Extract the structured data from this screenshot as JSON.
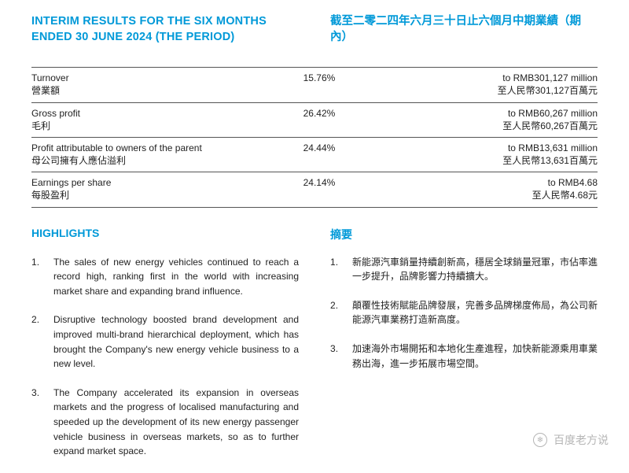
{
  "title": {
    "en": "INTERIM RESULTS FOR THE SIX MONTHS ENDED 30 JUNE 2024 (THE PERIOD)",
    "cn": "截至二零二四年六月三十日止六個月中期業績（期內）"
  },
  "table": {
    "rows": [
      {
        "label_en": "Turnover",
        "label_cn": "營業額",
        "pct": "15.76%",
        "val_en": "to RMB301,127 million",
        "val_cn": "至人民幣301,127百萬元"
      },
      {
        "label_en": "Gross profit",
        "label_cn": "毛利",
        "pct": "26.42%",
        "val_en": "to RMB60,267 million",
        "val_cn": "至人民幣60,267百萬元"
      },
      {
        "label_en": "Profit attributable to owners of the parent",
        "label_cn": "母公司擁有人應佔溢利",
        "pct": "24.44%",
        "val_en": "to RMB13,631 million",
        "val_cn": "至人民幣13,631百萬元"
      },
      {
        "label_en": "Earnings per share",
        "label_cn": "每股盈利",
        "pct": "24.14%",
        "val_en": "to RMB4.68",
        "val_cn": "至人民幣4.68元"
      }
    ]
  },
  "highlights": {
    "head_en": "HIGHLIGHTS",
    "head_cn": "摘要",
    "items_en": [
      "The sales of new energy vehicles continued to reach a record high, ranking first in the world with increasing market share and expanding brand influence.",
      "Disruptive technology boosted brand development and improved multi-brand hierarchical deployment, which has brought the Company's new energy vehicle business to a new level.",
      "The Company accelerated its expansion in overseas markets and the progress of localised manufacturing and speeded up the development of its new energy passenger vehicle business in overseas markets, so as to further expand market space."
    ],
    "items_cn": [
      "新能源汽車銷量持續創新高，穩居全球銷量冠軍，市佔率進一步提升，品牌影響力持續擴大。",
      "顛覆性技術賦能品牌發展，完善多品牌梯度佈局，為公司新能源汽車業務打造新高度。",
      "加速海外市場開拓和本地化生產進程，加快新能源乘用車業務出海，進一步拓展市場空間。"
    ]
  },
  "watermark": {
    "icon": "❄",
    "text": "百度老方说"
  }
}
